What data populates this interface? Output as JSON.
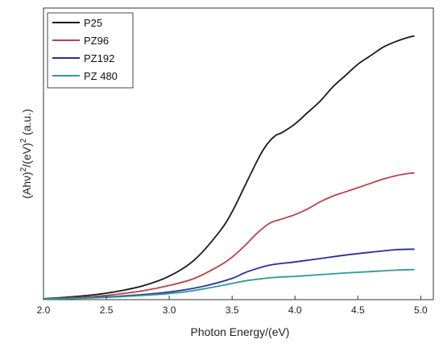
{
  "chart_data": {
    "type": "line",
    "title": "",
    "xlabel": "Photon Energy/(eV)",
    "ylabel_parts": [
      "(Ahν)",
      "2",
      "/(eV)",
      "2",
      " (a.u.)"
    ],
    "xlim": [
      2.0,
      5.1
    ],
    "ylim": [
      0,
      1.0
    ],
    "xticks": [
      "2.0",
      "2.5",
      "3.0",
      "3.5",
      "4.0",
      "4.5",
      "5.0"
    ],
    "grid": false,
    "legend_position": "top-left",
    "series": [
      {
        "name": "P25",
        "color": "#1a1a1a",
        "x": [
          2.0,
          2.2,
          2.4,
          2.6,
          2.8,
          3.0,
          3.2,
          3.4,
          3.5,
          3.6,
          3.7,
          3.75,
          3.8,
          3.85,
          3.9,
          4.0,
          4.1,
          4.2,
          4.3,
          4.4,
          4.5,
          4.6,
          4.7,
          4.8,
          4.9,
          4.95
        ],
        "y": [
          0.003,
          0.009,
          0.017,
          0.03,
          0.05,
          0.083,
          0.14,
          0.24,
          0.31,
          0.4,
          0.49,
          0.53,
          0.56,
          0.58,
          0.59,
          0.62,
          0.66,
          0.7,
          0.75,
          0.79,
          0.83,
          0.86,
          0.89,
          0.91,
          0.925,
          0.93
        ]
      },
      {
        "name": "PZ96",
        "color": "#c0404a",
        "x": [
          2.0,
          2.2,
          2.4,
          2.6,
          2.8,
          3.0,
          3.2,
          3.4,
          3.5,
          3.6,
          3.7,
          3.8,
          3.9,
          4.0,
          4.1,
          4.2,
          4.3,
          4.4,
          4.5,
          4.6,
          4.7,
          4.8,
          4.9,
          4.95
        ],
        "y": [
          0.002,
          0.006,
          0.011,
          0.02,
          0.032,
          0.05,
          0.075,
          0.12,
          0.15,
          0.19,
          0.235,
          0.27,
          0.285,
          0.3,
          0.32,
          0.345,
          0.365,
          0.38,
          0.395,
          0.41,
          0.425,
          0.437,
          0.445,
          0.447
        ]
      },
      {
        "name": "PZ192",
        "color": "#2a2d9a",
        "x": [
          2.0,
          2.3,
          2.6,
          2.9,
          3.1,
          3.3,
          3.5,
          3.6,
          3.7,
          3.8,
          3.9,
          4.0,
          4.2,
          4.4,
          4.6,
          4.8,
          4.95
        ],
        "y": [
          0.002,
          0.006,
          0.012,
          0.022,
          0.033,
          0.05,
          0.075,
          0.095,
          0.11,
          0.122,
          0.128,
          0.133,
          0.145,
          0.157,
          0.167,
          0.176,
          0.178
        ]
      },
      {
        "name": "PZ 480",
        "color": "#2e9b95",
        "x": [
          2.0,
          2.3,
          2.6,
          2.9,
          3.1,
          3.3,
          3.5,
          3.6,
          3.7,
          3.8,
          3.9,
          4.0,
          4.2,
          4.4,
          4.6,
          4.8,
          4.95
        ],
        "y": [
          0.002,
          0.005,
          0.01,
          0.018,
          0.026,
          0.04,
          0.057,
          0.066,
          0.072,
          0.077,
          0.08,
          0.082,
          0.088,
          0.094,
          0.099,
          0.104,
          0.106
        ]
      }
    ]
  }
}
